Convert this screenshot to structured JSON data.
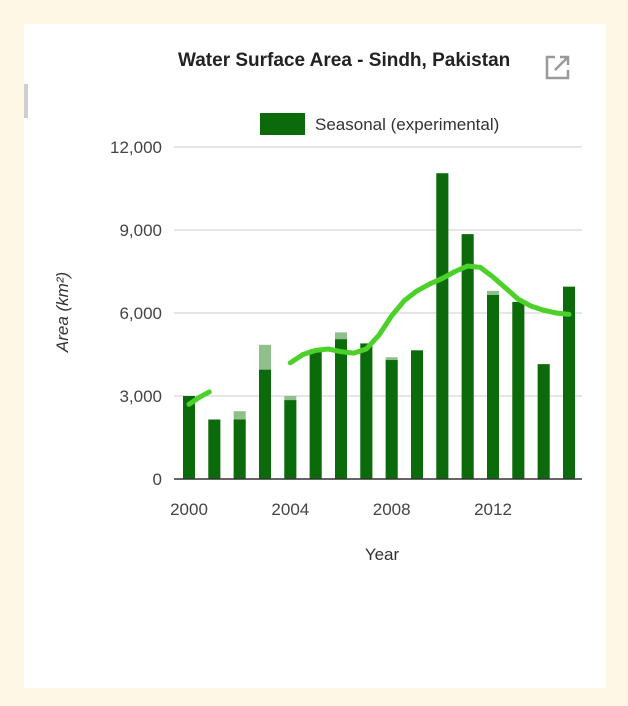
{
  "chart_data": {
    "type": "bar",
    "title": "Water Surface Area - Sindh, Pakistan",
    "xlabel": "Year",
    "ylabel": "Area (km²)",
    "ylim": [
      0,
      12000
    ],
    "yticks": [
      "0",
      "3,000",
      "6,000",
      "9,000",
      "12,000"
    ],
    "ytick_values": [
      0,
      3000,
      6000,
      9000,
      12000
    ],
    "xticks": [
      "2000",
      "2004",
      "2008",
      "2012"
    ],
    "xtick_values": [
      2000,
      2004,
      2008,
      2012
    ],
    "legend": {
      "position": "top-right"
    },
    "grid": true,
    "categories": [
      2000,
      2001,
      2002,
      2003,
      2004,
      2005,
      2006,
      2007,
      2008,
      2009,
      2010,
      2011,
      2012,
      2013,
      2014,
      2015
    ],
    "series": [
      {
        "name": "Seasonal (experimental)",
        "color": "#0b6b0b",
        "values": [
          3000,
          2150,
          2150,
          3950,
          2850,
          4600,
          5050,
          4900,
          4300,
          4650,
          11050,
          8850,
          6650,
          6400,
          4150,
          6950
        ]
      },
      {
        "color": "#8fbf8a",
        "values": [
          3000,
          2150,
          2450,
          4850,
          3000,
          4700,
          5300,
          4900,
          4400,
          4650,
          11050,
          8850,
          6800,
          6400,
          4150,
          6950
        ]
      },
      {
        "type": "trend-line",
        "color": "#4cd12a",
        "segments": [
          {
            "x": [
              2000,
              2000.4,
              2000.8
            ],
            "y": [
              2700,
              2950,
              3150
            ]
          },
          {
            "x": [
              2004,
              2004.5,
              2005,
              2005.5,
              2006,
              2006.5,
              2007,
              2007.5,
              2008,
              2008.5,
              2009,
              2009.5,
              2010,
              2010.5,
              2011,
              2011.5,
              2012,
              2012.5,
              2013,
              2013.5,
              2014,
              2014.5,
              2015
            ],
            "y": [
              4200,
              4500,
              4650,
              4700,
              4600,
              4550,
              4700,
              5200,
              5900,
              6450,
              6800,
              7050,
              7250,
              7500,
              7700,
              7650,
              7300,
              6900,
              6500,
              6250,
              6100,
              6000,
              5950
            ]
          }
        ]
      }
    ]
  }
}
